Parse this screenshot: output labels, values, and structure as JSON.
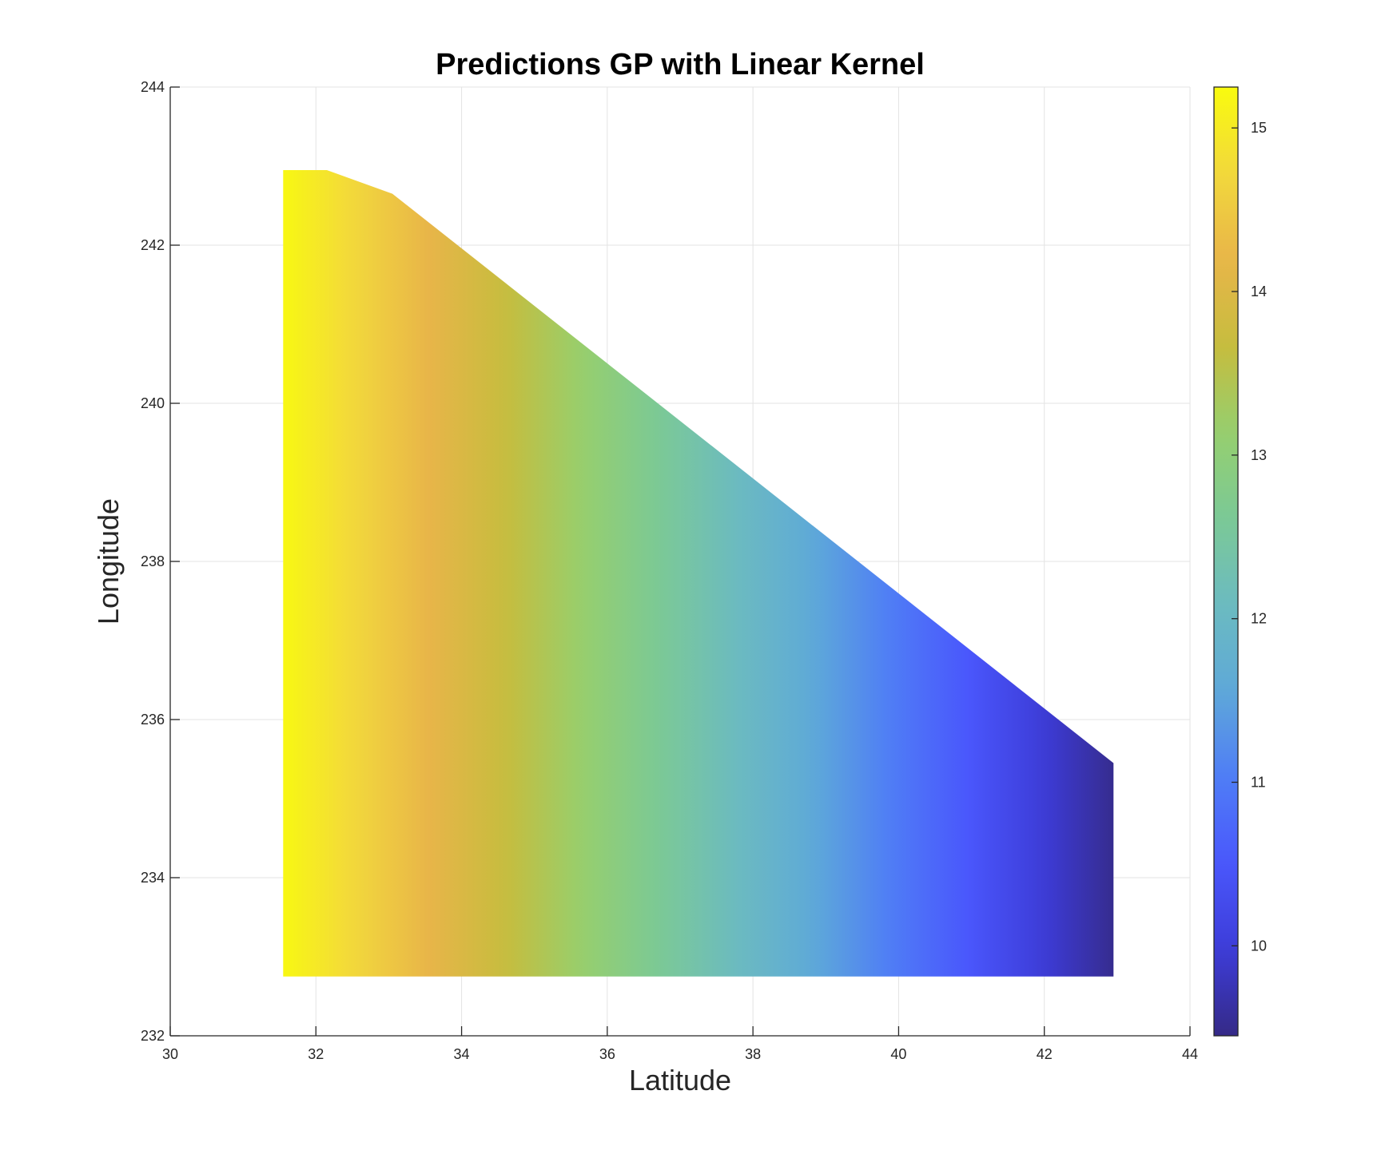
{
  "chart_data": {
    "type": "heatmap",
    "title": "Predictions GP with Linear Kernel",
    "xlabel": "Latitude",
    "ylabel": "Longitude",
    "xlim": [
      30,
      44
    ],
    "ylim": [
      232,
      244
    ],
    "xticks": [
      30,
      32,
      34,
      36,
      38,
      40,
      42,
      44
    ],
    "yticks": [
      232,
      234,
      236,
      238,
      240,
      242,
      244
    ],
    "xtick_labels": [
      "30",
      "32",
      "34",
      "36",
      "38",
      "40",
      "42",
      "44"
    ],
    "ytick_labels": [
      "232",
      "234",
      "236",
      "238",
      "240",
      "242",
      "244"
    ],
    "grid": true,
    "colormap": "parula",
    "region_outline": [
      [
        31.55,
        232.75
      ],
      [
        42.95,
        232.75
      ],
      [
        42.95,
        235.45
      ],
      [
        33.05,
        242.65
      ],
      [
        32.15,
        242.95
      ],
      [
        31.55,
        242.95
      ]
    ],
    "field": {
      "description_of_trend": "linear in latitude",
      "value_at": [
        {
          "lat": 31.55,
          "value": 15.2
        },
        {
          "lat": 42.95,
          "value": 9.5
        }
      ]
    },
    "colorbar": {
      "range": [
        9.45,
        15.25
      ],
      "ticks": [
        10,
        11,
        12,
        13,
        14,
        15
      ],
      "tick_labels": [
        "10",
        "11",
        "12",
        "13",
        "14",
        "15"
      ],
      "placement": "right"
    },
    "colors": {
      "parula": [
        "#352a87",
        "#3d3cd8",
        "#4a57fc",
        "#4f7df6",
        "#5ea9d8",
        "#6cbbc0",
        "#7bc996",
        "#96cf6e",
        "#c6bd3e",
        "#e8b549",
        "#f2d83c",
        "#f9fb0e"
      ]
    }
  }
}
